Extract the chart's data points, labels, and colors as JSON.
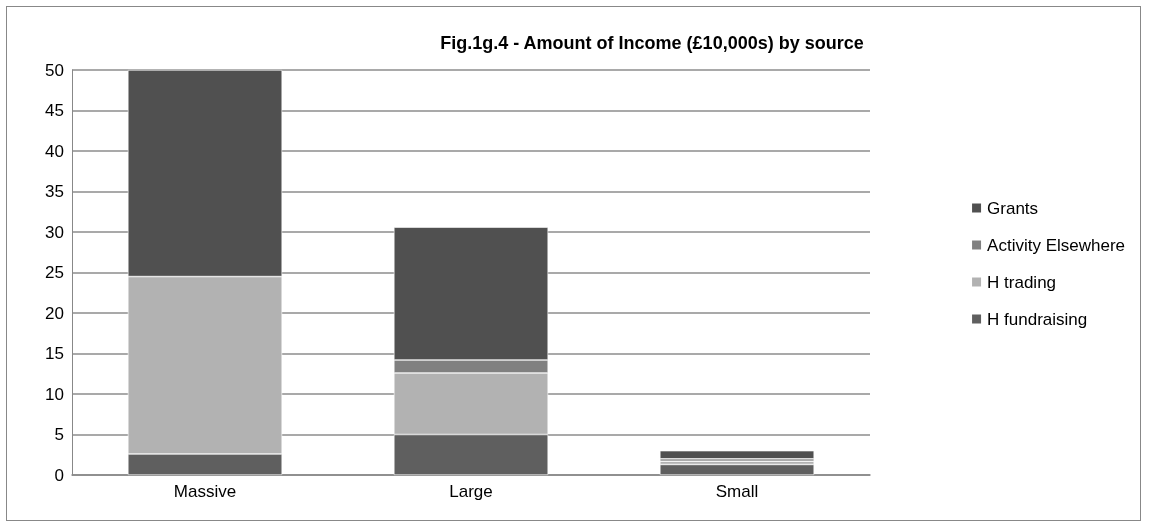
{
  "chart_data": {
    "type": "bar",
    "title": "Fig.1g.4 - Amount of Income (£10,000s) by source",
    "categories": [
      "Massive",
      "Large",
      "Small"
    ],
    "stacked": true,
    "series": [
      {
        "name": "H fundraising",
        "color": "#5f5f5f",
        "values": [
          2.6,
          5.0,
          1.3
        ]
      },
      {
        "name": "H trading",
        "color": "#b2b2b2",
        "values": [
          21.9,
          7.6,
          0.4
        ]
      },
      {
        "name": "Activity Elsewhere",
        "color": "#808080",
        "values": [
          0,
          1.6,
          0.3
        ]
      },
      {
        "name": "Grants",
        "color": "#505050",
        "values": [
          25.5,
          16.4,
          1.0
        ]
      }
    ],
    "ylim": [
      0,
      50
    ],
    "yticks": [
      0,
      5,
      10,
      15,
      20,
      25,
      30,
      35,
      40,
      45,
      50
    ],
    "grid": "y",
    "legend": "right"
  }
}
